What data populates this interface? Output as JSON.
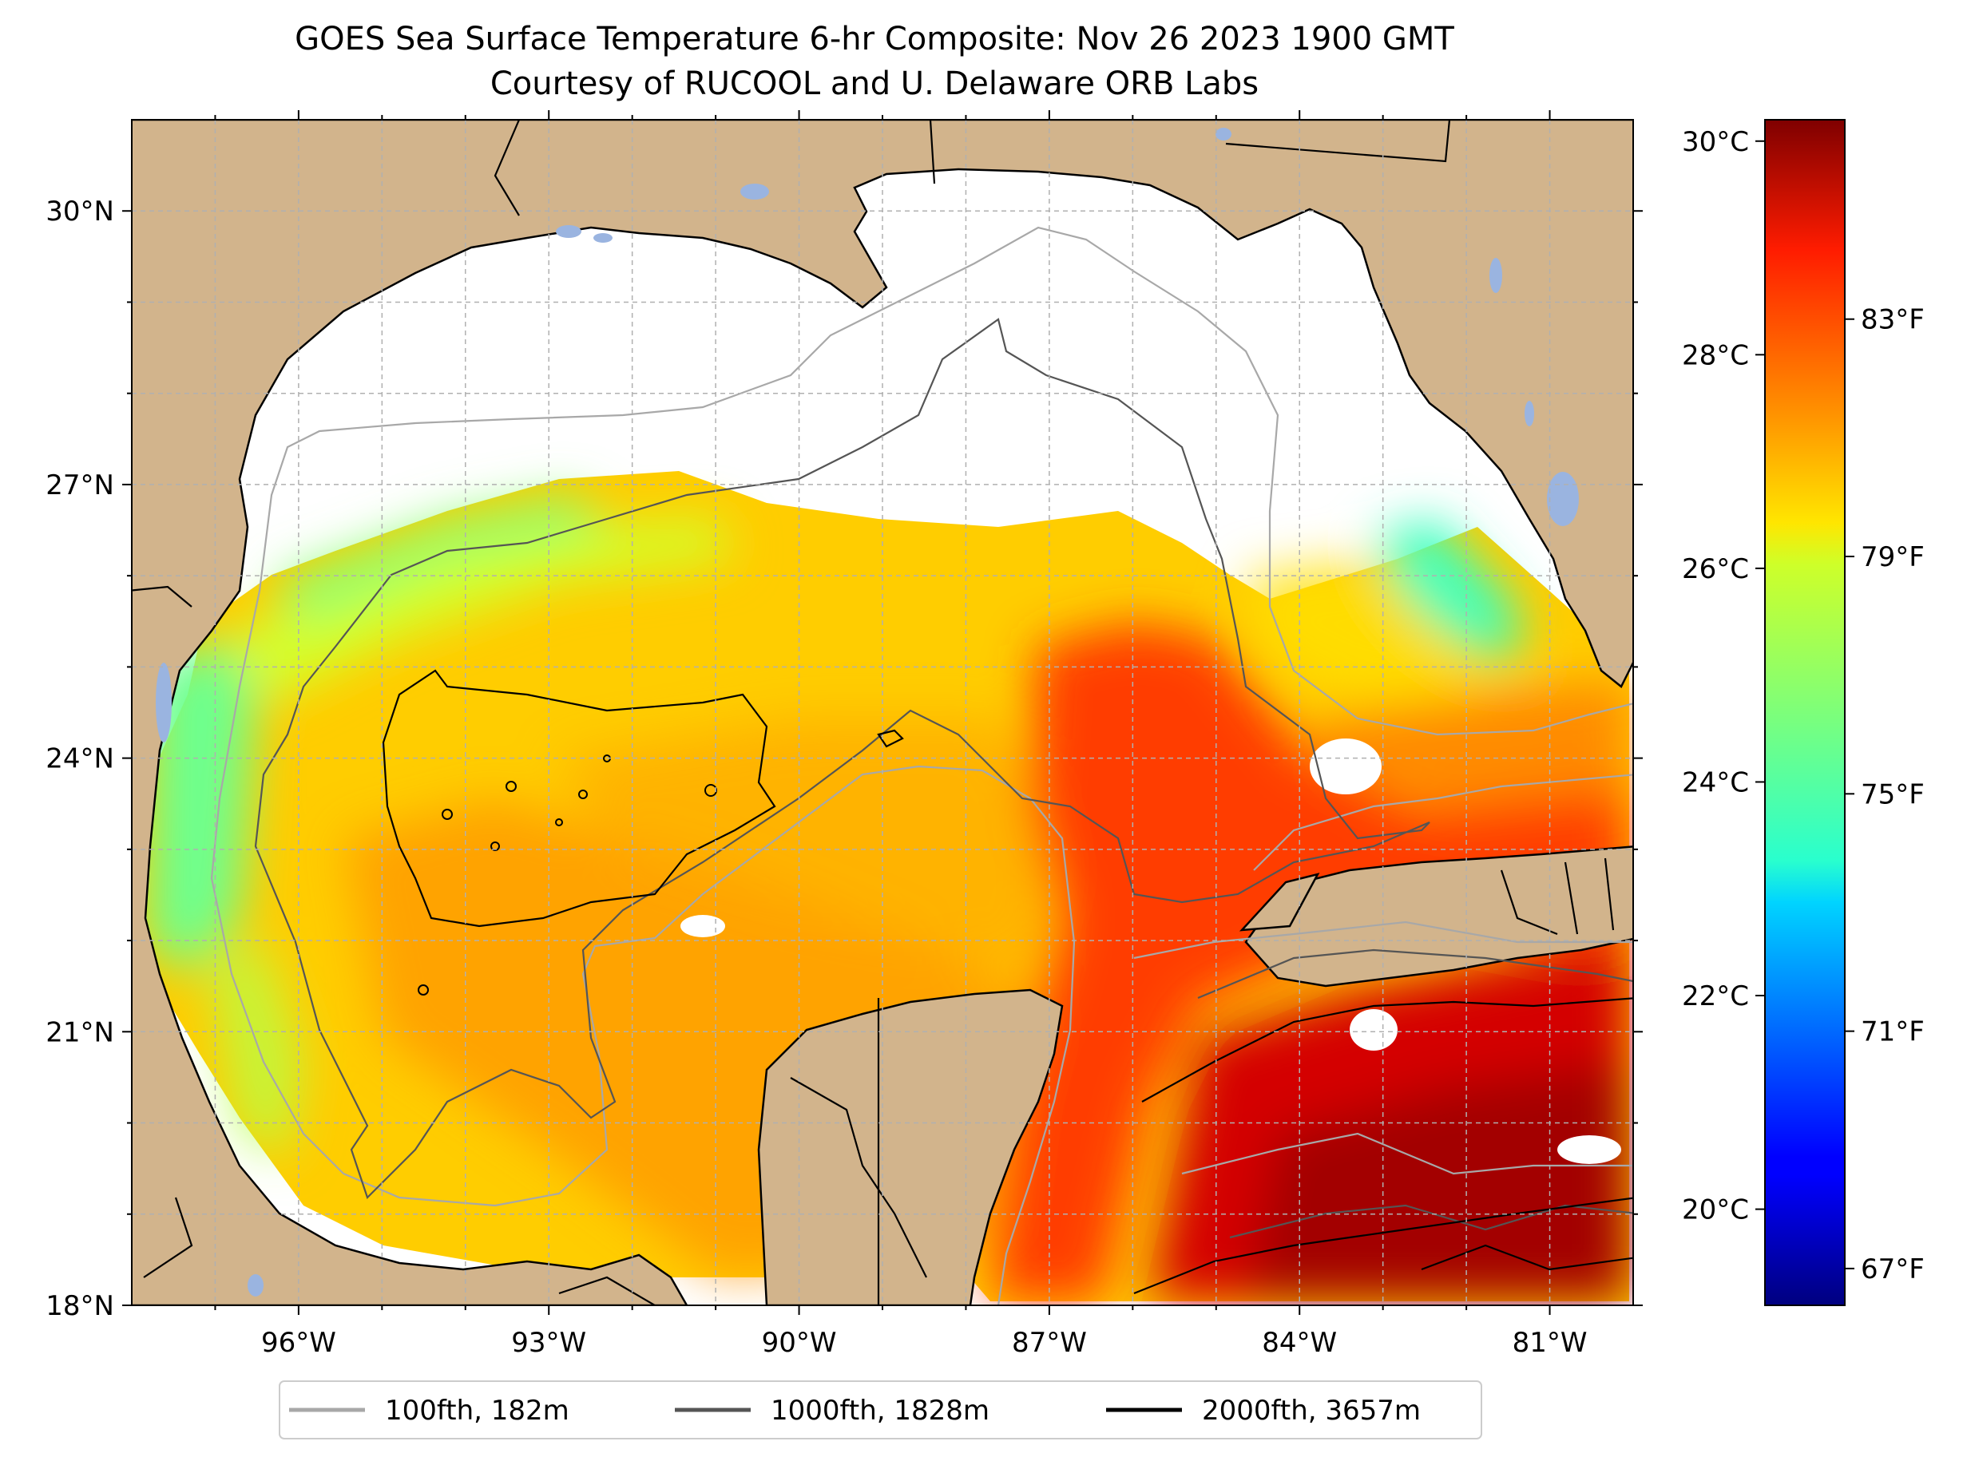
{
  "title": {
    "line1": "GOES Sea Surface Temperature 6-hr Composite: Nov 26 2023 1900 GMT",
    "line2": "Courtesy of RUCOOL and U. Delaware ORB Labs"
  },
  "map": {
    "lon_range": [
      -98,
      -80
    ],
    "lat_range": [
      18,
      31
    ],
    "lon_ticks": [
      {
        "value": -96,
        "label": "96°W"
      },
      {
        "value": -93,
        "label": "93°W"
      },
      {
        "value": -90,
        "label": "90°W"
      },
      {
        "value": -87,
        "label": "87°W"
      },
      {
        "value": -84,
        "label": "84°W"
      },
      {
        "value": -81,
        "label": "81°W"
      }
    ],
    "lat_ticks": [
      {
        "value": 18,
        "label": "18°N"
      },
      {
        "value": 21,
        "label": "21°N"
      },
      {
        "value": 24,
        "label": "24°N"
      },
      {
        "value": 27,
        "label": "27°N"
      },
      {
        "value": 30,
        "label": "30°N"
      }
    ],
    "colors": {
      "land": "#d2b48c",
      "lake": "#9ab4e0",
      "no_data": "#ffffff",
      "grid": "#b0b0b0"
    }
  },
  "colorbar": {
    "colormap": "jet",
    "range_c": [
      19.1,
      30.2
    ],
    "celsius_ticks": [
      {
        "value": 20,
        "label": "20°C"
      },
      {
        "value": 22,
        "label": "22°C"
      },
      {
        "value": 24,
        "label": "24°C"
      },
      {
        "value": 26,
        "label": "26°C"
      },
      {
        "value": 28,
        "label": "28°C"
      },
      {
        "value": 30,
        "label": "30°C"
      }
    ],
    "fahrenheit_ticks": [
      {
        "value": 67,
        "label": "67°F"
      },
      {
        "value": 71,
        "label": "71°F"
      },
      {
        "value": 75,
        "label": "75°F"
      },
      {
        "value": 79,
        "label": "79°F"
      },
      {
        "value": 83,
        "label": "83°F"
      }
    ]
  },
  "legend": [
    {
      "label": "100fth, 182m",
      "color": "#a8a8a8"
    },
    {
      "label": "1000fth, 1828m",
      "color": "#555555"
    },
    {
      "label": "2000fth, 3657m",
      "color": "#000000"
    }
  ]
}
